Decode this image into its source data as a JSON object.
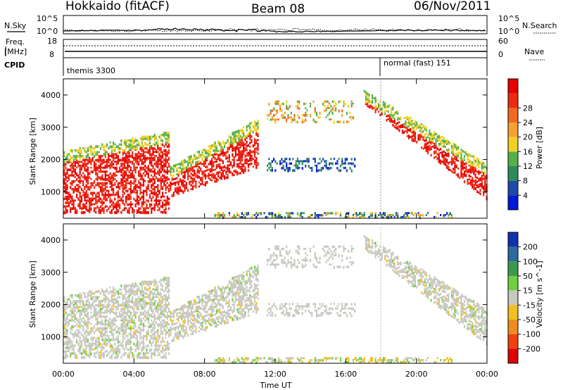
{
  "header": {
    "radar": "Hokkaido (fitACF)",
    "beam": "Beam 08",
    "date": "06/Nov/2011"
  },
  "panels": {
    "nsky_label": "N.Sky",
    "nsearch_label": "N.Search",
    "freq_label_line1": "Freq.",
    "freq_label_line2": "[MHz]",
    "nave_label": "Nave",
    "cpid_label": "CPID",
    "cpid_segments": [
      "themis 3300",
      "normal (fast) 151"
    ],
    "noise_ticks_left": [
      "10^5",
      "10^0"
    ],
    "noise_ticks_right": [
      "10^5",
      "10^0"
    ],
    "freq_ticks": [
      "18",
      "8"
    ],
    "nave_ticks": [
      "60",
      "0"
    ]
  },
  "chart_data": [
    {
      "type": "heatmap",
      "title": "",
      "xlabel": "Time UT",
      "ylabel": "Slant Range [km]",
      "x_ticks": [
        "00:00",
        "04:00",
        "08:00",
        "12:00",
        "16:00",
        "20:00",
        "00:00"
      ],
      "y_ticks": [
        1000,
        2000,
        3000,
        4000
      ],
      "ylim": [
        180,
        4500
      ],
      "colorbar": {
        "label": "Power [dB]",
        "ticks": [
          "4",
          "8",
          "12",
          "16",
          "20",
          "24",
          "28"
        ],
        "colors": [
          "#0018d8",
          "#1c4aa8",
          "#2f8a5a",
          "#56b04a",
          "#f0d020",
          "#f5a030",
          "#f26a20",
          "#ee2a10",
          "#e80000"
        ]
      },
      "grid": false
    },
    {
      "type": "heatmap",
      "title": "",
      "xlabel": "Time UT",
      "ylabel": "Slant Range [km]",
      "x_ticks": [
        "00:00",
        "04:00",
        "08:00",
        "12:00",
        "16:00",
        "20:00",
        "00:00"
      ],
      "y_ticks": [
        1000,
        2000,
        3000,
        4000
      ],
      "ylim": [
        180,
        4500
      ],
      "colorbar": {
        "label": "Velocity [m s^-1]",
        "ticks": [
          "200",
          "100",
          "50",
          "15",
          "-15",
          "-50",
          "-100",
          "-200"
        ],
        "colors": [
          "#1030b0",
          "#2c6aa0",
          "#3c9a50",
          "#70d040",
          "#c8c8c0",
          "#f0c020",
          "#f08c20",
          "#f04010",
          "#e00000"
        ]
      },
      "grid": false
    }
  ]
}
